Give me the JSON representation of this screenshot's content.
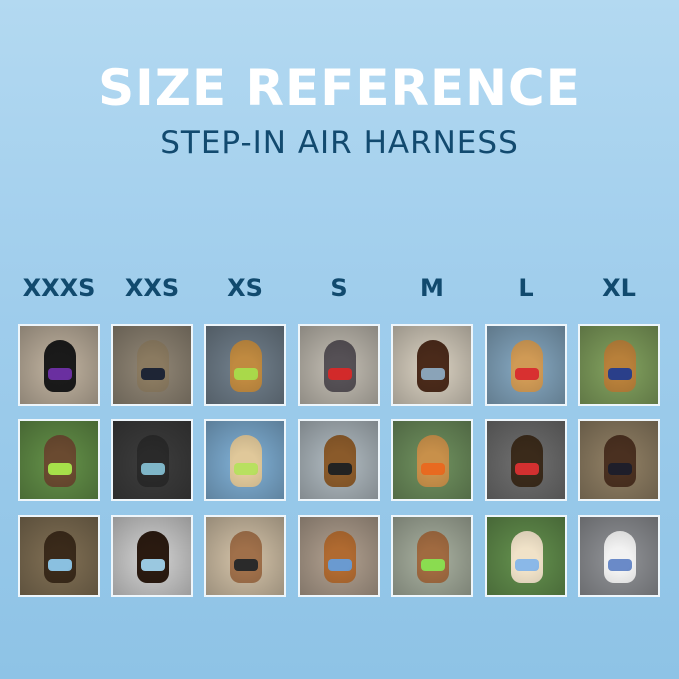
{
  "header": {
    "title": "SIZE REFERENCE",
    "subtitle": "STEP-IN AIR HARNESS"
  },
  "colors": {
    "title": "#ffffff",
    "subtitle": "#124a6f",
    "labels": "#114a6e",
    "background_top": "#b3d9f1",
    "background_bottom": "#8ec3e6"
  },
  "sizes": [
    "XXXS",
    "XXS",
    "XS",
    "S",
    "M",
    "L",
    "XL"
  ],
  "photos": [
    [
      {
        "bg": "#b7aa98",
        "pet": "#1a1a1a",
        "harness": "#6a2fa0"
      },
      {
        "bg": "#8a8070",
        "pet": "#8a7a60",
        "harness": "#1e2535"
      },
      {
        "bg": "#6c7a86",
        "pet": "#c08a40",
        "harness": "#a9d94a"
      },
      {
        "bg": "#b9b4aa",
        "pet": "#555055",
        "harness": "#d22a2a"
      },
      {
        "bg": "#cfc7b8",
        "pet": "#4a2a1a",
        "harness": "#8aa3b8"
      },
      {
        "bg": "#7fa0b8",
        "pet": "#d09a55",
        "harness": "#d83030"
      },
      {
        "bg": "#7c9a5a",
        "pet": "#b8803a",
        "harness": "#2a3f8a"
      }
    ],
    [
      {
        "bg": "#5f8a45",
        "pet": "#6a4a30",
        "harness": "#a6e04a"
      },
      {
        "bg": "#3a3a3a",
        "pet": "#2a2a2a",
        "harness": "#7fb6c8"
      },
      {
        "bg": "#7aa8cc",
        "pet": "#e0c89a",
        "harness": "#b8e060"
      },
      {
        "bg": "#a8b2b8",
        "pet": "#8a5a2a",
        "harness": "#222222"
      },
      {
        "bg": "#6a8a5a",
        "pet": "#c8904a",
        "harness": "#e86a20"
      },
      {
        "bg": "#6a6a6a",
        "pet": "#3a2a1a",
        "harness": "#d23030"
      },
      {
        "bg": "#8a7a60",
        "pet": "#4a3020",
        "harness": "#1e1e2a"
      }
    ],
    [
      {
        "bg": "#7a6a50",
        "pet": "#3a2a1a",
        "harness": "#8ac0e0"
      },
      {
        "bg": "#c8c8c8",
        "pet": "#2a1a10",
        "harness": "#9ac8e0"
      },
      {
        "bg": "#c9b9a0",
        "pet": "#a0704a",
        "harness": "#2a2a2a"
      },
      {
        "bg": "#a89888",
        "pet": "#b06a30",
        "harness": "#6a9ad0"
      },
      {
        "bg": "#a0a898",
        "pet": "#a06a40",
        "harness": "#8adc50"
      },
      {
        "bg": "#5f8a4a",
        "pet": "#f0e2c8",
        "harness": "#8ab8e8"
      },
      {
        "bg": "#8a8c90",
        "pet": "#f2f2f2",
        "harness": "#6a8ac8"
      }
    ]
  ]
}
